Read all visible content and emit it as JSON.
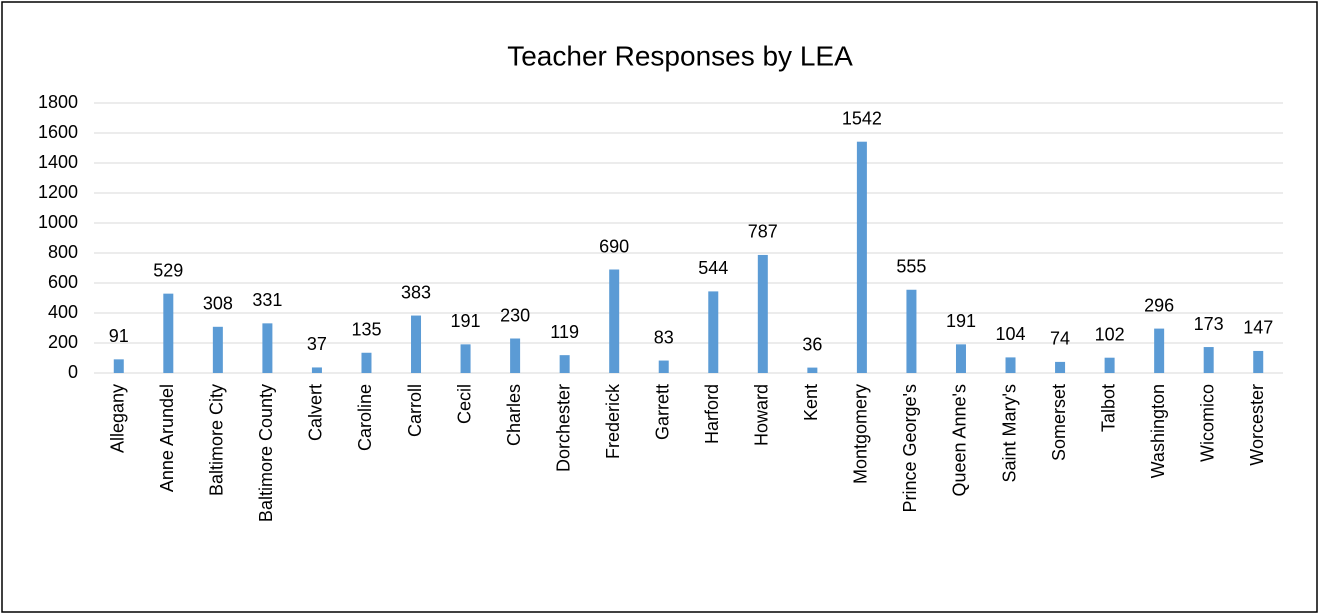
{
  "chart_data": {
    "type": "bar",
    "title": "Teacher Responses by LEA",
    "categories": [
      "Allegany",
      "Anne Arundel",
      "Baltimore City",
      "Baltimore County",
      "Calvert",
      "Caroline",
      "Carroll",
      "Cecil",
      "Charles",
      "Dorchester",
      "Frederick",
      "Garrett",
      "Harford",
      "Howard",
      "Kent",
      "Montgomery",
      "Prince George's",
      "Queen Anne's",
      "Saint Mary's",
      "Somerset",
      "Talbot",
      "Washington",
      "Wicomico",
      "Worcester"
    ],
    "values": [
      91,
      529,
      308,
      331,
      37,
      135,
      383,
      191,
      230,
      119,
      690,
      83,
      544,
      787,
      36,
      1542,
      555,
      191,
      104,
      74,
      102,
      296,
      173,
      147
    ],
    "color": "#5b9bd5",
    "ylim": [
      0,
      1800
    ],
    "yticks": [
      0,
      200,
      400,
      600,
      800,
      1000,
      1200,
      1400,
      1600,
      1800
    ],
    "grid": true
  }
}
